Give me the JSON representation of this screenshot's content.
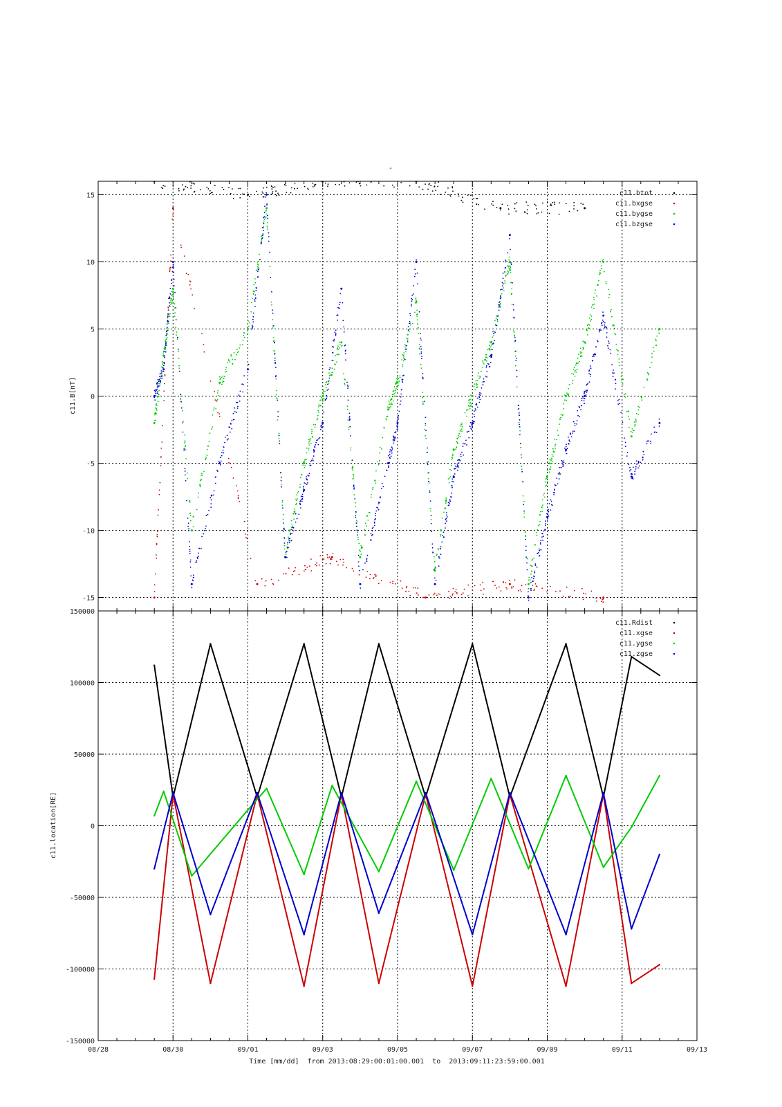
{
  "figure": {
    "title": "-",
    "xlabel": "Time [mm/dd]  from 2013:08:29:00:01:00.001  to  2013:09:11:23:59:00.001",
    "x_ticks": [
      "08/28",
      "08/30",
      "09/01",
      "09/03",
      "09/05",
      "09/07",
      "09/09",
      "09/11",
      "09/13"
    ],
    "x_range_days": [
      "2013-08-28",
      "2013-09-13"
    ],
    "grid": true
  },
  "chart_data": [
    {
      "type": "scatter",
      "ylabel": "c11.B[nT]",
      "ylim": [
        -16,
        16
      ],
      "y_ticks": [
        -15,
        -10,
        -5,
        0,
        5,
        10,
        15
      ],
      "legend_position": "top-right",
      "series": [
        {
          "name": "c11.btot",
          "color": "#000000",
          "x": [
            "2013-08-29 12:00",
            "2013-09-01 00:00",
            "2013-09-03 00:00",
            "2013-09-05 12:00",
            "2013-09-07 18:00",
            "2013-09-10 00:00"
          ],
          "values": [
            16,
            15,
            16,
            16,
            14,
            14
          ]
        },
        {
          "name": "c11.bxgse",
          "color": "#cc0000",
          "x": [
            "2013-08-29 12:00",
            "2013-08-30 00:00",
            "2013-09-01 06:00",
            "2013-09-03 06:00",
            "2013-09-05 18:00",
            "2013-09-08 00:00",
            "2013-09-10 12:00"
          ],
          "values": [
            -15,
            14,
            -14,
            -12,
            -15,
            -14,
            -15
          ]
        },
        {
          "name": "c11.bygse",
          "color": "#00cc00",
          "x": [
            "2013-08-29 12:00",
            "2013-08-29 18:00",
            "2013-08-30 00:00",
            "2013-08-30 12:00",
            "2013-08-31 06:00",
            "2013-09-01 00:00",
            "2013-09-01 12:00",
            "2013-09-02 00:00",
            "2013-09-02 12:00",
            "2013-09-03 00:00",
            "2013-09-03 12:00",
            "2013-09-04 00:00",
            "2013-09-04 18:00",
            "2013-09-05 00:00",
            "2013-09-05 12:00",
            "2013-09-06 00:00",
            "2013-09-06 12:00",
            "2013-09-07 00:00",
            "2013-09-07 12:00",
            "2013-09-08 00:00",
            "2013-09-08 12:00",
            "2013-09-09 00:00",
            "2013-09-09 12:00",
            "2013-09-10 00:00",
            "2013-09-10 12:00",
            "2013-09-11 06:00",
            "2013-09-12 00:00"
          ],
          "values": [
            -2,
            3,
            8,
            -10,
            1,
            5,
            14,
            -12,
            -5,
            0,
            4,
            -12,
            -1,
            1,
            7,
            -13,
            -4,
            0,
            4,
            10,
            -14,
            -6,
            0,
            4,
            10,
            -3,
            5
          ]
        },
        {
          "name": "c11.bzgse",
          "color": "#0000cc",
          "x": [
            "2013-08-29 12:00",
            "2013-08-29 18:00",
            "2013-08-30 00:00",
            "2013-08-30 12:00",
            "2013-08-31 06:00",
            "2013-09-01 00:00",
            "2013-09-01 12:00",
            "2013-09-02 00:00",
            "2013-09-02 12:00",
            "2013-09-03 00:00",
            "2013-09-03 12:00",
            "2013-09-04 00:00",
            "2013-09-04 18:00",
            "2013-09-05 00:00",
            "2013-09-05 12:00",
            "2013-09-06 00:00",
            "2013-09-06 12:00",
            "2013-09-07 00:00",
            "2013-09-07 12:00",
            "2013-09-08 00:00",
            "2013-09-08 12:00",
            "2013-09-09 00:00",
            "2013-09-09 12:00",
            "2013-09-10 00:00",
            "2013-09-10 12:00",
            "2013-09-11 06:00",
            "2013-09-12 00:00"
          ],
          "values": [
            0,
            2,
            10,
            -14,
            -5,
            2,
            15,
            -12,
            -7,
            -2,
            8,
            -14,
            -5,
            -2,
            10,
            -14,
            -6,
            -2,
            3,
            12,
            -15,
            -9,
            -4,
            0,
            6,
            -6,
            -2
          ]
        }
      ]
    },
    {
      "type": "scatter",
      "ylabel": "c11.location[RE]",
      "ylim": [
        -150000,
        150000
      ],
      "y_ticks": [
        -150000,
        -100000,
        -50000,
        0,
        50000,
        100000,
        150000
      ],
      "legend_position": "top-right",
      "series": [
        {
          "name": "c11.Rdist",
          "color": "#000000",
          "x": [
            "2013-08-29 12:00",
            "2013-08-30 00:00",
            "2013-08-31 00:00",
            "2013-09-01 06:00",
            "2013-09-02 12:00",
            "2013-09-03 12:00",
            "2013-09-04 12:00",
            "2013-09-05 18:00",
            "2013-09-07 00:00",
            "2013-09-08 00:00",
            "2013-09-09 12:00",
            "2013-09-10 12:00",
            "2013-09-11 06:00",
            "2013-09-12 00:00"
          ],
          "values": [
            112000,
            20000,
            127000,
            20000,
            127000,
            20000,
            127000,
            20000,
            127000,
            20000,
            127000,
            20000,
            118000,
            105000
          ]
        },
        {
          "name": "c11.xgse",
          "color": "#cc0000",
          "x": [
            "2013-08-29 12:00",
            "2013-08-30 00:00",
            "2013-08-31 00:00",
            "2013-09-01 06:00",
            "2013-09-02 12:00",
            "2013-09-03 12:00",
            "2013-09-04 12:00",
            "2013-09-05 18:00",
            "2013-09-07 00:00",
            "2013-09-08 00:00",
            "2013-09-09 12:00",
            "2013-09-10 12:00",
            "2013-09-11 06:00",
            "2013-09-12 00:00"
          ],
          "values": [
            -107000,
            22000,
            -110000,
            22000,
            -112000,
            22000,
            -110000,
            22000,
            -112000,
            22000,
            -112000,
            22000,
            -110000,
            -97000
          ]
        },
        {
          "name": "c11.ygse",
          "color": "#00cc00",
          "x": [
            "2013-08-29 12:00",
            "2013-08-29 18:00",
            "2013-08-30 12:00",
            "2013-09-01 00:00",
            "2013-09-01 12:00",
            "2013-09-02 12:00",
            "2013-09-03 06:00",
            "2013-09-04 12:00",
            "2013-09-05 12:00",
            "2013-09-06 12:00",
            "2013-09-07 12:00",
            "2013-09-08 12:00",
            "2013-09-09 12:00",
            "2013-09-10 12:00",
            "2013-09-11 06:00",
            "2013-09-12 00:00"
          ],
          "values": [
            7000,
            24000,
            -35000,
            11000,
            26000,
            -34000,
            28000,
            -32000,
            31000,
            -31000,
            33000,
            -30000,
            35000,
            -29000,
            -1000,
            35000
          ]
        },
        {
          "name": "c11.zgse",
          "color": "#0000cc",
          "x": [
            "2013-08-29 12:00",
            "2013-08-30 00:00",
            "2013-08-31 00:00",
            "2013-09-01 06:00",
            "2013-09-02 12:00",
            "2013-09-03 12:00",
            "2013-09-04 12:00",
            "2013-09-05 18:00",
            "2013-09-07 00:00",
            "2013-09-08 00:00",
            "2013-09-09 12:00",
            "2013-09-10 12:00",
            "2013-09-11 06:00",
            "2013-09-12 00:00"
          ],
          "values": [
            -30000,
            23000,
            -62000,
            23000,
            -76000,
            23000,
            -61000,
            23000,
            -76000,
            23000,
            -76000,
            23000,
            -72000,
            -20000
          ]
        }
      ]
    }
  ]
}
